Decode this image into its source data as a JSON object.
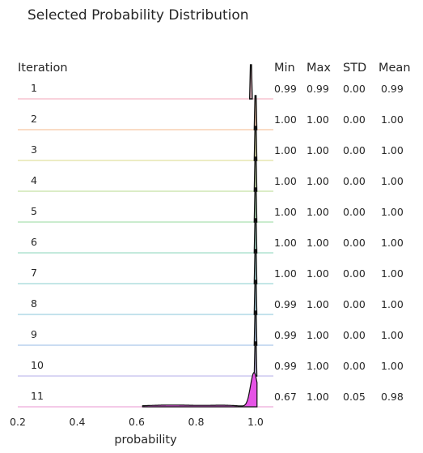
{
  "chart_data": {
    "type": "ridgeline",
    "title": "Selected Probability Distribution",
    "row_header": "Iteration",
    "xlabel": "probability",
    "xlim": [
      0.2,
      1.06
    ],
    "xticks": [
      "0.2",
      "0.4",
      "0.6",
      "0.8",
      "1.0"
    ],
    "xtick_values": [
      0.2,
      0.4,
      0.6,
      0.8,
      1.0
    ],
    "stat_headers": [
      "Min",
      "Max",
      "STD",
      "Mean"
    ],
    "rows": [
      {
        "label": "1",
        "min": "0.99",
        "max": "0.99",
        "std": "0.00",
        "mean": "0.99",
        "color": "#f7c3d0"
      },
      {
        "label": "2",
        "min": "1.00",
        "max": "1.00",
        "std": "0.00",
        "mean": "1.00",
        "color": "#f9d0b2"
      },
      {
        "label": "3",
        "min": "1.00",
        "max": "1.00",
        "std": "0.00",
        "mean": "1.00",
        "color": "#e6e6b0"
      },
      {
        "label": "4",
        "min": "1.00",
        "max": "1.00",
        "std": "0.00",
        "mean": "1.00",
        "color": "#cfe6b3"
      },
      {
        "label": "5",
        "min": "1.00",
        "max": "1.00",
        "std": "0.00",
        "mean": "1.00",
        "color": "#b8e6bd"
      },
      {
        "label": "6",
        "min": "1.00",
        "max": "1.00",
        "std": "0.00",
        "mean": "1.00",
        "color": "#b0e3d0"
      },
      {
        "label": "7",
        "min": "1.00",
        "max": "1.00",
        "std": "0.00",
        "mean": "1.00",
        "color": "#b0dfdf"
      },
      {
        "label": "8",
        "min": "0.99",
        "max": "1.00",
        "std": "0.00",
        "mean": "1.00",
        "color": "#b0d9e6"
      },
      {
        "label": "9",
        "min": "0.99",
        "max": "1.00",
        "std": "0.00",
        "mean": "1.00",
        "color": "#b8d0ee"
      },
      {
        "label": "10",
        "min": "0.99",
        "max": "1.00",
        "std": "0.00",
        "mean": "1.00",
        "color": "#cdc8f0"
      },
      {
        "label": "11",
        "min": "0.67",
        "max": "1.00",
        "std": "0.05",
        "mean": "0.98",
        "color": "#f0b8e0"
      }
    ],
    "highlight_fill": "#e653e6",
    "grid": false
  }
}
